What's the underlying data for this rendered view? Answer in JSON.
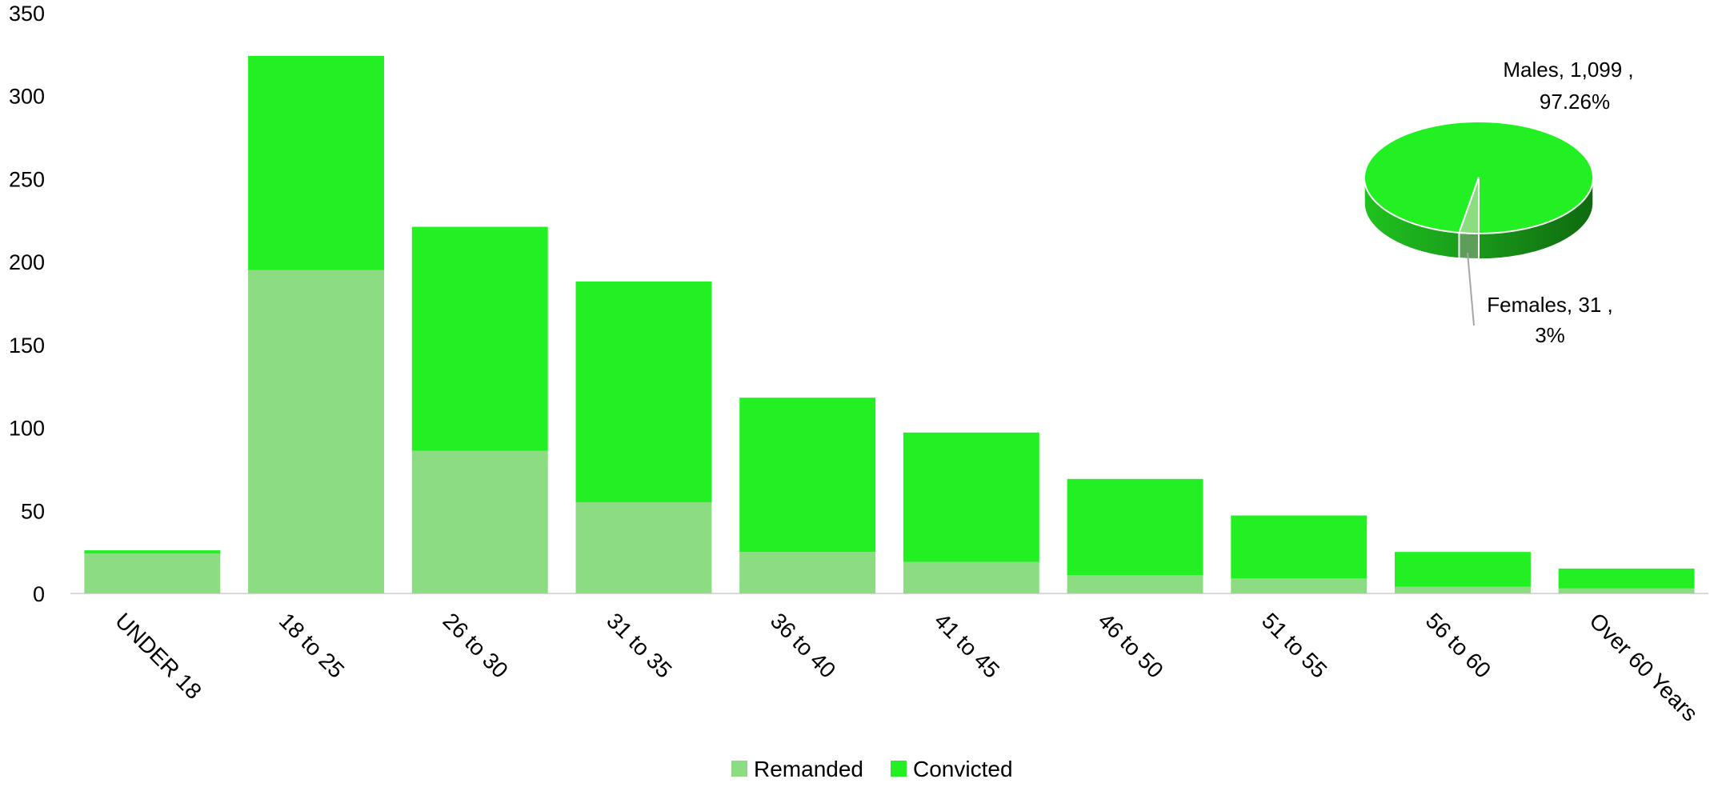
{
  "chart_data": [
    {
      "type": "bar",
      "stacked": true,
      "categories": [
        "UNDER 18",
        "18 to 25",
        "26 to 30",
        "31 to 35",
        "36 to 40",
        "41 to 45",
        "46 to 50",
        "51 to 55",
        "56 to 60",
        "Over 60 Years"
      ],
      "series": [
        {
          "name": "Remanded",
          "color": "#8cdc82",
          "values": [
            24,
            195,
            86,
            55,
            25,
            19,
            11,
            9,
            4,
            3
          ]
        },
        {
          "name": "Convicted",
          "color": "#22f022",
          "values": [
            2,
            129,
            135,
            133,
            93,
            78,
            58,
            38,
            21,
            12
          ]
        }
      ],
      "y_ticks": [
        "0",
        "50",
        "100",
        "150",
        "200",
        "250",
        "300",
        "350"
      ],
      "ylim": [
        0,
        350
      ],
      "grid": false,
      "legend": "bottom-center"
    },
    {
      "type": "pie",
      "style": "3d",
      "slices": [
        {
          "label": "Males",
          "value": 1099,
          "value_text": "1,099",
          "percent_text": "97.26%",
          "color": "#22f022"
        },
        {
          "label": "Females",
          "value": 31,
          "value_text": "31",
          "percent_text": "3%",
          "color": "#8cdc82"
        }
      ],
      "label_text": {
        "males_line1": "Males,  1,099 ,",
        "males_line2": "97.26%",
        "females_line1": "Females,  31 ,",
        "females_line2": "3%"
      }
    }
  ]
}
